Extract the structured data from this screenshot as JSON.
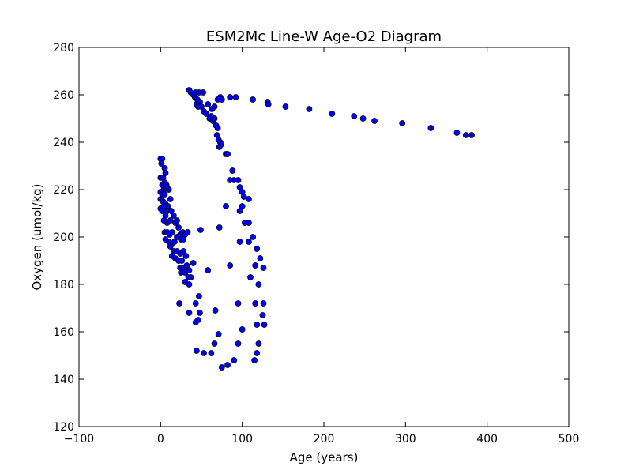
{
  "chart_data": {
    "type": "scatter",
    "title": "ESM2Mc Line-W Age-O2 Diagram",
    "xlabel": "Age (years)",
    "ylabel": "Oxygen (umol/kg)",
    "xlim": [
      -100,
      500
    ],
    "ylim": [
      120,
      280
    ],
    "xticks": [
      -100,
      0,
      100,
      200,
      300,
      400,
      500
    ],
    "xtick_labels": [
      "−100",
      "0",
      "100",
      "200",
      "300",
      "400",
      "500"
    ],
    "yticks": [
      120,
      140,
      160,
      180,
      200,
      220,
      240,
      260,
      280
    ],
    "ytick_labels": [
      "120",
      "140",
      "160",
      "180",
      "200",
      "220",
      "240",
      "260",
      "280"
    ],
    "grid": false,
    "marker_color": "#0000ff",
    "marker_edge": "#000000",
    "points": [
      [
        35,
        262
      ],
      [
        37,
        261
      ],
      [
        40,
        260
      ],
      [
        43,
        261
      ],
      [
        47,
        261
      ],
      [
        52,
        261
      ],
      [
        42,
        259
      ],
      [
        45,
        258
      ],
      [
        48,
        257
      ],
      [
        44,
        256
      ],
      [
        46,
        255
      ],
      [
        50,
        255
      ],
      [
        53,
        253
      ],
      [
        56,
        252
      ],
      [
        58,
        256
      ],
      [
        62,
        251
      ],
      [
        60,
        250
      ],
      [
        64,
        249
      ],
      [
        66,
        250
      ],
      [
        63,
        254
      ],
      [
        66,
        255
      ],
      [
        68,
        247
      ],
      [
        70,
        246
      ],
      [
        69,
        243
      ],
      [
        71,
        241
      ],
      [
        73,
        240
      ],
      [
        74,
        239
      ],
      [
        72,
        238
      ],
      [
        80,
        235
      ],
      [
        82,
        235
      ],
      [
        70,
        258
      ],
      [
        73,
        259
      ],
      [
        75,
        258
      ],
      [
        85,
        259
      ],
      [
        92,
        259
      ],
      [
        113,
        258
      ],
      [
        131,
        257
      ],
      [
        132,
        256
      ],
      [
        153,
        255
      ],
      [
        182,
        254
      ],
      [
        210,
        252
      ],
      [
        237,
        251
      ],
      [
        248,
        250
      ],
      [
        262,
        249
      ],
      [
        296,
        248
      ],
      [
        331,
        246
      ],
      [
        363,
        244
      ],
      [
        374,
        243
      ],
      [
        381,
        243
      ],
      [
        0,
        233
      ],
      [
        2,
        233
      ],
      [
        1,
        231
      ],
      [
        5,
        229
      ],
      [
        6,
        227
      ],
      [
        0,
        225
      ],
      [
        3,
        225
      ],
      [
        2,
        222
      ],
      [
        4,
        220
      ],
      [
        5,
        223
      ],
      [
        7,
        222
      ],
      [
        8,
        221
      ],
      [
        10,
        220
      ],
      [
        0,
        219
      ],
      [
        2,
        218
      ],
      [
        5,
        218
      ],
      [
        0,
        216
      ],
      [
        3,
        215
      ],
      [
        6,
        214
      ],
      [
        9,
        213
      ],
      [
        12,
        216
      ],
      [
        0,
        212
      ],
      [
        2,
        211
      ],
      [
        4,
        213
      ],
      [
        8,
        211
      ],
      [
        13,
        211
      ],
      [
        16,
        209
      ],
      [
        6,
        209
      ],
      [
        8,
        206
      ],
      [
        12,
        207
      ],
      [
        18,
        206
      ],
      [
        20,
        207
      ],
      [
        4,
        207
      ],
      [
        5,
        202
      ],
      [
        8,
        202
      ],
      [
        11,
        201
      ],
      [
        14,
        202
      ],
      [
        6,
        199
      ],
      [
        10,
        198
      ],
      [
        14,
        197
      ],
      [
        17,
        198
      ],
      [
        22,
        204
      ],
      [
        24,
        201
      ],
      [
        27,
        202
      ],
      [
        30,
        201
      ],
      [
        33,
        202
      ],
      [
        20,
        200
      ],
      [
        25,
        199
      ],
      [
        28,
        199
      ],
      [
        12,
        196
      ],
      [
        16,
        194
      ],
      [
        20,
        194
      ],
      [
        24,
        193
      ],
      [
        28,
        194
      ],
      [
        14,
        192
      ],
      [
        18,
        191
      ],
      [
        22,
        190
      ],
      [
        26,
        190
      ],
      [
        31,
        192
      ],
      [
        24,
        187
      ],
      [
        28,
        187
      ],
      [
        32,
        188
      ],
      [
        35,
        186
      ],
      [
        40,
        189
      ],
      [
        25,
        185
      ],
      [
        30,
        185
      ],
      [
        34,
        183
      ],
      [
        37,
        183
      ],
      [
        30,
        181
      ],
      [
        35,
        180
      ],
      [
        49,
        203
      ],
      [
        58,
        186
      ],
      [
        43,
        172
      ],
      [
        47,
        175
      ],
      [
        35,
        168
      ],
      [
        48,
        168
      ],
      [
        43,
        164
      ],
      [
        46,
        165
      ],
      [
        23,
        172
      ],
      [
        44,
        152
      ],
      [
        53,
        151
      ],
      [
        62,
        151
      ],
      [
        66,
        155
      ],
      [
        71,
        159
      ],
      [
        67,
        169
      ],
      [
        75,
        145
      ],
      [
        82,
        146
      ],
      [
        90,
        148
      ],
      [
        95,
        155
      ],
      [
        100,
        161
      ],
      [
        95,
        172
      ],
      [
        85,
        188
      ],
      [
        80,
        213
      ],
      [
        72,
        204
      ],
      [
        90,
        224
      ],
      [
        95,
        224
      ],
      [
        85,
        224
      ],
      [
        88,
        228
      ],
      [
        97,
        221
      ],
      [
        100,
        219
      ],
      [
        102,
        217
      ],
      [
        108,
        216
      ],
      [
        100,
        213
      ],
      [
        97,
        211
      ],
      [
        103,
        206
      ],
      [
        108,
        206
      ],
      [
        113,
        200
      ],
      [
        108,
        198
      ],
      [
        97,
        198
      ],
      [
        118,
        195
      ],
      [
        122,
        191
      ],
      [
        116,
        188
      ],
      [
        126,
        187
      ],
      [
        110,
        183
      ],
      [
        120,
        180
      ],
      [
        116,
        172
      ],
      [
        126,
        172
      ],
      [
        125,
        167
      ],
      [
        118,
        163
      ],
      [
        127,
        163
      ],
      [
        120,
        155
      ],
      [
        118,
        151
      ],
      [
        115,
        148
      ]
    ]
  }
}
